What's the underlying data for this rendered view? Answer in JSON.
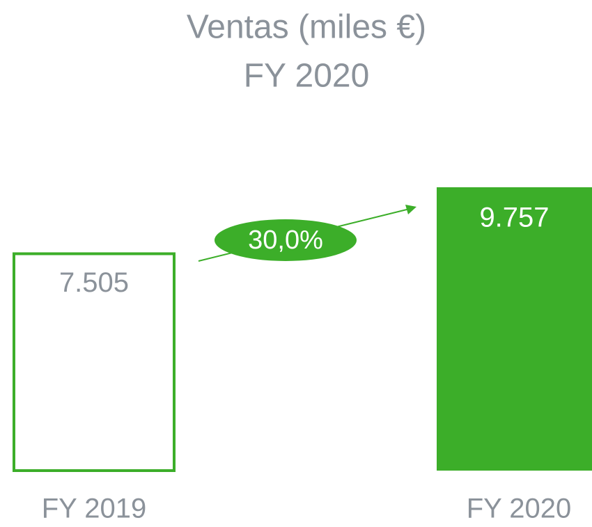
{
  "chart_data": {
    "type": "bar",
    "title": "Ventas (miles €)",
    "subtitle": "FY 2020",
    "categories": [
      "FY 2019",
      "FY 2020"
    ],
    "values": [
      7505,
      9757
    ],
    "value_labels": [
      "7.505",
      "9.757"
    ],
    "color": "#3cae29",
    "annotation": "30,0%"
  }
}
